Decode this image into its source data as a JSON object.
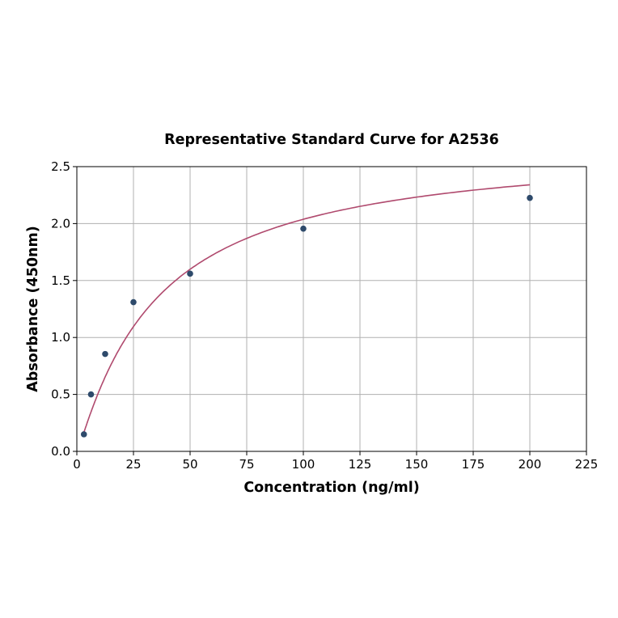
{
  "chart_data": {
    "type": "scatter",
    "title": "Representative Standard Curve for A2536",
    "xlabel": "Concentration (ng/ml)",
    "ylabel": "Absorbance (450nm)",
    "xlim": [
      0,
      225
    ],
    "ylim": [
      0,
      2.5
    ],
    "xticks": [
      "0",
      "25",
      "50",
      "75",
      "100",
      "125",
      "150",
      "175",
      "200",
      "225"
    ],
    "yticks": [
      "0.0",
      "0.5",
      "1.0",
      "1.5",
      "2.0",
      "2.5"
    ],
    "grid": true,
    "points": {
      "x": [
        3.125,
        6.25,
        12.5,
        25,
        50,
        100,
        200
      ],
      "y": [
        0.15,
        0.5,
        0.855,
        1.31,
        1.56,
        1.955,
        2.225
      ]
    },
    "fit_curve": true,
    "colors": {
      "points": "#2e4a6b",
      "curve": "#b04a6e",
      "grid": "#b0b0b0"
    }
  }
}
